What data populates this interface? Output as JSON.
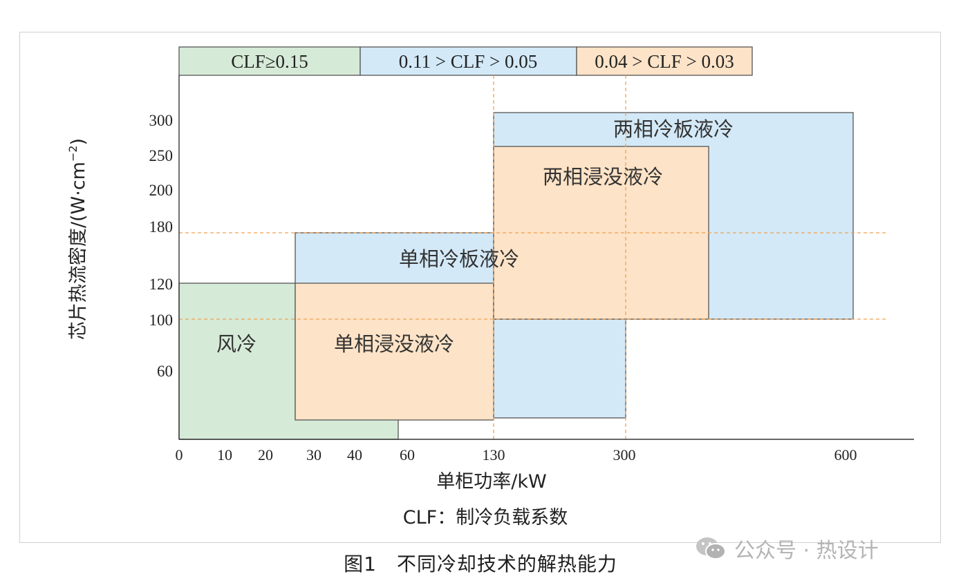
{
  "chart_data": {
    "type": "range-area",
    "clf_legend": [
      {
        "label": "CLF≥0.15",
        "color": "#d6ead8"
      },
      {
        "label": "0.11 > CLF > 0.05",
        "color": "#d3e9f7"
      },
      {
        "label": "0.04 > CLF > 0.03",
        "color": "#fde3c7"
      }
    ],
    "x_axis": {
      "label": "单柜功率/kW",
      "ticks": [
        "0",
        "10",
        "20",
        "30",
        "40",
        "60",
        "130",
        "300",
        "600"
      ]
    },
    "y_axis": {
      "label": "芯片热流密度/(W·cm",
      "label_sup": "−2",
      "label_close": ")",
      "ticks": [
        "60",
        "100",
        "120",
        "180",
        "200",
        "250",
        "300"
      ]
    },
    "regions": [
      {
        "name": "风冷",
        "x_range": [
          "0",
          "60"
        ],
        "y_range": [
          "0",
          "120"
        ],
        "color": "#d6ead8",
        "clf": "CLF≥0.15"
      },
      {
        "name": "单相冷板液冷",
        "x_range": [
          "30",
          "300"
        ],
        "y_range": [
          "0",
          "180"
        ],
        "color": "#d3e9f7",
        "clf": "0.11 > CLF > 0.05"
      },
      {
        "name": "单相浸没液冷",
        "x_range": [
          "30",
          "130"
        ],
        "y_range": [
          "0",
          "120"
        ],
        "color": "#fde3c7",
        "clf": "0.04 > CLF > 0.03"
      },
      {
        "name": "两相冷板液冷",
        "x_range": [
          "130",
          "600"
        ],
        "y_range": [
          "100",
          "300"
        ],
        "color": "#d3e9f7",
        "clf": "0.11 > CLF > 0.05"
      },
      {
        "name": "两相浸没液冷",
        "x_range": [
          "130",
          "300+"
        ],
        "y_range": [
          "100",
          "250"
        ],
        "color": "#fde3c7",
        "clf": "0.04 > CLF > 0.03"
      }
    ],
    "reference_lines": {
      "x": [
        "130",
        "300"
      ],
      "y": [
        "100",
        "180"
      ],
      "color": "#f0a050"
    },
    "note": "CLF：制冷负载系数"
  },
  "caption": "图1　不同冷却技术的解热能力",
  "watermark": "公众号 · 热设计"
}
